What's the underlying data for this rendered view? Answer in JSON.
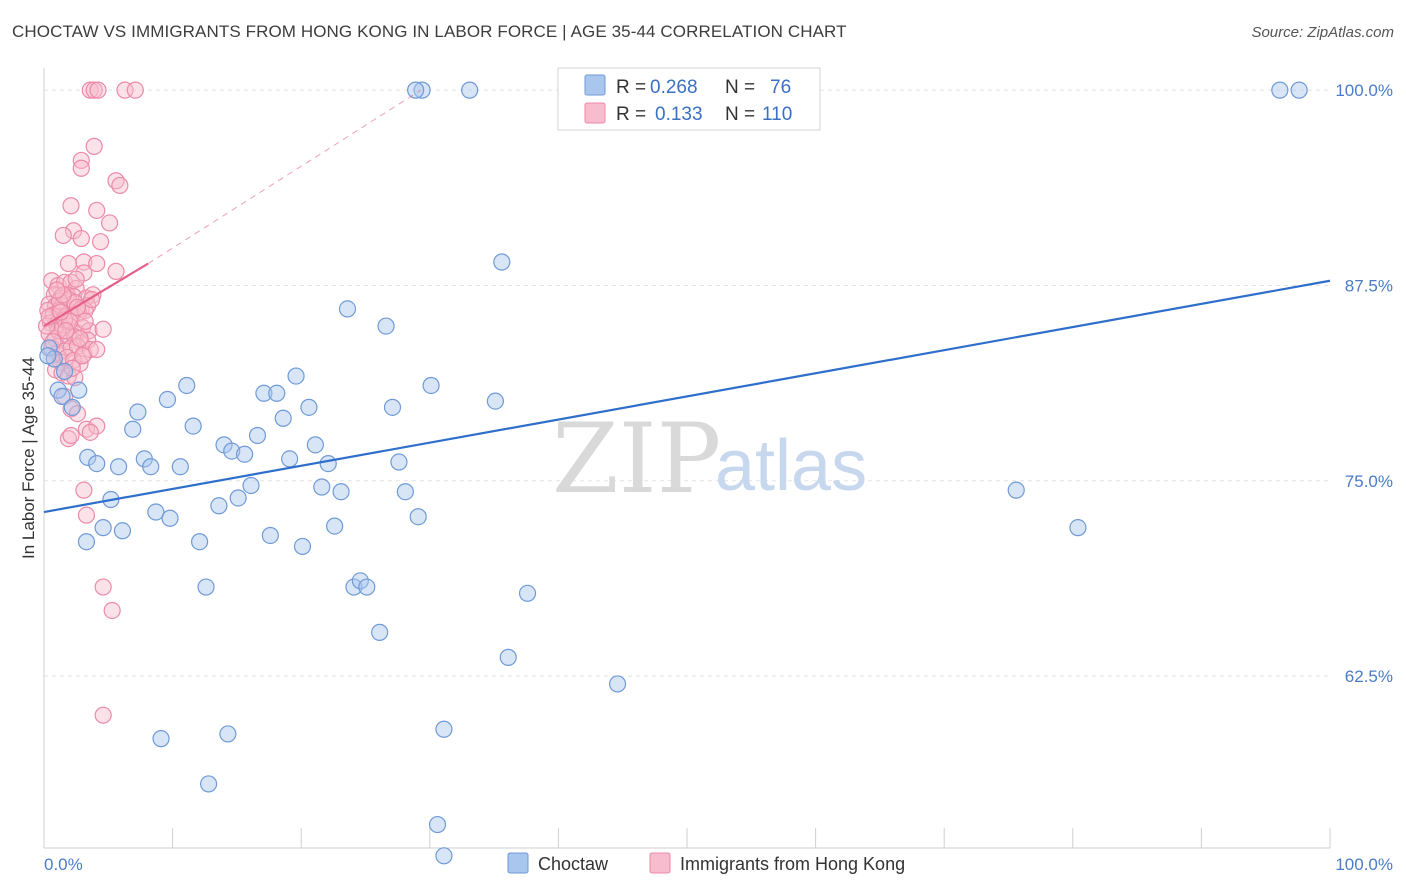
{
  "title": "CHOCTAW VS IMMIGRANTS FROM HONG KONG IN LABOR FORCE | AGE 35-44 CORRELATION CHART",
  "source": "Source: ZipAtlas.com",
  "watermark": {
    "zip": "ZIP",
    "atlas": "atlas"
  },
  "colors": {
    "choctaw_fill": "#a9c6ee",
    "choctaw_stroke": "#6f9ad6",
    "choctaw_line": "#2f6fcb",
    "hk_fill": "#f7bccd",
    "hk_stroke": "#ec8aa9",
    "hk_line": "#e4608a",
    "grid": "#e3e3e3",
    "label": "#4a7cc7"
  },
  "legend": {
    "rows": [
      {
        "r_label": "R =",
        "r_value": "0.268",
        "n_label": "N =",
        "n_value": "76"
      },
      {
        "r_label": "R =",
        "r_value": "0.133",
        "n_label": "N =",
        "n_value": "110"
      }
    ]
  },
  "chart_data": {
    "type": "scatter",
    "title": "CHOCTAW VS IMMIGRANTS FROM HONG KONG IN LABOR FORCE | AGE 35-44 CORRELATION CHART",
    "xlabel": "",
    "ylabel": "In Labor Force | Age 35-44",
    "xlim": [
      0,
      100
    ],
    "ylim": [
      51.5,
      101.8
    ],
    "x_tick_labels": [
      "0.0%",
      "100.0%"
    ],
    "y_ticks": [
      62.5,
      75.0,
      87.5,
      100.0
    ],
    "y_tick_labels": [
      "62.5%",
      "75.0%",
      "87.5%",
      "100.0%"
    ],
    "grid": true,
    "series": [
      {
        "name": "Choctaw",
        "R": 0.268,
        "N": 76,
        "trend": {
          "x": [
            0,
            100
          ],
          "y": [
            73.0,
            87.8
          ],
          "dashed_extension": false
        },
        "points": [
          [
            0.4,
            83.5
          ],
          [
            0.8,
            82.8
          ],
          [
            1.1,
            80.8
          ],
          [
            1.4,
            80.4
          ],
          [
            1.6,
            82.0
          ],
          [
            2.2,
            79.7
          ],
          [
            2.7,
            80.8
          ],
          [
            3.4,
            76.5
          ],
          [
            4.1,
            76.1
          ],
          [
            4.6,
            72.0
          ],
          [
            5.2,
            73.8
          ],
          [
            3.3,
            71.1
          ],
          [
            6.1,
            71.8
          ],
          [
            5.8,
            75.9
          ],
          [
            6.9,
            78.3
          ],
          [
            7.3,
            79.4
          ],
          [
            7.8,
            76.4
          ],
          [
            8.3,
            75.9
          ],
          [
            8.7,
            73.0
          ],
          [
            9.8,
            72.6
          ],
          [
            9.6,
            80.2
          ],
          [
            10.6,
            75.9
          ],
          [
            11.1,
            81.1
          ],
          [
            11.6,
            78.5
          ],
          [
            12.1,
            71.1
          ],
          [
            12.6,
            68.2
          ],
          [
            13.6,
            73.4
          ],
          [
            14.0,
            77.3
          ],
          [
            14.6,
            76.9
          ],
          [
            15.1,
            73.9
          ],
          [
            15.6,
            76.7
          ],
          [
            16.1,
            74.7
          ],
          [
            16.6,
            77.9
          ],
          [
            17.1,
            80.6
          ],
          [
            17.6,
            71.5
          ],
          [
            18.1,
            80.6
          ],
          [
            18.6,
            79.0
          ],
          [
            19.1,
            76.4
          ],
          [
            19.6,
            81.7
          ],
          [
            20.1,
            70.8
          ],
          [
            20.6,
            79.7
          ],
          [
            21.1,
            77.3
          ],
          [
            21.6,
            74.6
          ],
          [
            22.1,
            76.1
          ],
          [
            22.6,
            72.1
          ],
          [
            23.1,
            74.3
          ],
          [
            23.6,
            86.0
          ],
          [
            24.1,
            68.2
          ],
          [
            24.6,
            68.6
          ],
          [
            25.1,
            68.2
          ],
          [
            26.1,
            65.3
          ],
          [
            26.6,
            84.9
          ],
          [
            27.1,
            79.7
          ],
          [
            27.6,
            76.2
          ],
          [
            28.1,
            74.3
          ],
          [
            29.1,
            72.7
          ],
          [
            30.1,
            81.1
          ],
          [
            29.4,
            100.0
          ],
          [
            28.9,
            100.0
          ],
          [
            33.1,
            100.0
          ],
          [
            35.1,
            80.1
          ],
          [
            35.6,
            89.0
          ],
          [
            36.1,
            63.7
          ],
          [
            37.6,
            67.8
          ],
          [
            44.6,
            62.0
          ],
          [
            31.1,
            59.1
          ],
          [
            30.6,
            53.0
          ],
          [
            31.1,
            51.0
          ],
          [
            12.8,
            55.6
          ],
          [
            14.3,
            58.8
          ],
          [
            9.1,
            58.5
          ],
          [
            75.6,
            74.4
          ],
          [
            80.4,
            72.0
          ],
          [
            96.1,
            100.0
          ],
          [
            97.6,
            100.0
          ],
          [
            0.3,
            83.0
          ]
        ]
      },
      {
        "name": "Immigrants from Hong Kong",
        "R": 0.133,
        "N": 110,
        "trend": {
          "x": [
            0,
            8.1
          ],
          "y": [
            84.9,
            88.9
          ],
          "dashed_extension_to": [
            29.3,
            100.0
          ]
        },
        "points": [
          [
            3.6,
            100.0
          ],
          [
            3.9,
            100.0
          ],
          [
            4.2,
            100.0
          ],
          [
            6.3,
            100.0
          ],
          [
            7.1,
            100.0
          ],
          [
            3.9,
            96.4
          ],
          [
            2.9,
            95.5
          ],
          [
            2.9,
            95.0
          ],
          [
            5.6,
            94.2
          ],
          [
            5.9,
            93.9
          ],
          [
            4.1,
            92.3
          ],
          [
            2.1,
            92.6
          ],
          [
            5.1,
            91.5
          ],
          [
            2.3,
            91.0
          ],
          [
            1.5,
            90.7
          ],
          [
            2.9,
            90.5
          ],
          [
            4.4,
            90.3
          ],
          [
            3.1,
            89.0
          ],
          [
            1.9,
            88.9
          ],
          [
            3.1,
            88.3
          ],
          [
            4.1,
            88.9
          ],
          [
            5.6,
            88.4
          ],
          [
            0.6,
            87.8
          ],
          [
            1.1,
            87.5
          ],
          [
            1.6,
            87.7
          ],
          [
            2.1,
            87.7
          ],
          [
            2.5,
            87.3
          ],
          [
            0.8,
            86.9
          ],
          [
            1.3,
            86.7
          ],
          [
            1.8,
            86.9
          ],
          [
            2.3,
            86.8
          ],
          [
            3.3,
            86.7
          ],
          [
            3.8,
            86.9
          ],
          [
            0.4,
            86.3
          ],
          [
            0.9,
            86.2
          ],
          [
            1.4,
            86.2
          ],
          [
            1.9,
            86.6
          ],
          [
            2.4,
            86.4
          ],
          [
            2.9,
            86.0
          ],
          [
            3.4,
            86.2
          ],
          [
            0.3,
            85.9
          ],
          [
            0.7,
            85.6
          ],
          [
            1.2,
            85.9
          ],
          [
            1.7,
            85.5
          ],
          [
            2.2,
            85.6
          ],
          [
            2.7,
            85.7
          ],
          [
            3.2,
            85.9
          ],
          [
            0.5,
            85.1
          ],
          [
            1.0,
            85.0
          ],
          [
            1.5,
            84.8
          ],
          [
            2.0,
            84.9
          ],
          [
            2.5,
            84.5
          ],
          [
            3.0,
            84.8
          ],
          [
            3.5,
            84.6
          ],
          [
            4.6,
            84.7
          ],
          [
            0.4,
            84.4
          ],
          [
            0.9,
            84.1
          ],
          [
            1.4,
            84.0
          ],
          [
            1.9,
            84.3
          ],
          [
            2.4,
            84.2
          ],
          [
            2.9,
            83.8
          ],
          [
            3.4,
            84.0
          ],
          [
            0.6,
            83.5
          ],
          [
            1.1,
            83.2
          ],
          [
            1.6,
            83.3
          ],
          [
            2.1,
            83.5
          ],
          [
            2.6,
            83.6
          ],
          [
            3.1,
            83.1
          ],
          [
            3.6,
            83.4
          ],
          [
            4.1,
            83.4
          ],
          [
            0.8,
            82.8
          ],
          [
            1.3,
            82.6
          ],
          [
            1.8,
            82.9
          ],
          [
            2.3,
            82.7
          ],
          [
            2.8,
            82.5
          ],
          [
            0.9,
            82.1
          ],
          [
            1.4,
            81.9
          ],
          [
            1.9,
            81.7
          ],
          [
            2.4,
            81.6
          ],
          [
            1.6,
            80.4
          ],
          [
            2.1,
            79.6
          ],
          [
            2.6,
            79.3
          ],
          [
            3.3,
            78.3
          ],
          [
            4.1,
            78.5
          ],
          [
            3.6,
            78.1
          ],
          [
            1.9,
            77.7
          ],
          [
            2.1,
            77.9
          ],
          [
            3.1,
            74.4
          ],
          [
            3.3,
            72.8
          ],
          [
            4.6,
            68.2
          ],
          [
            5.3,
            66.7
          ],
          [
            4.6,
            60.0
          ],
          [
            1.1,
            84.6
          ],
          [
            1.6,
            85.3
          ],
          [
            2.6,
            86.1
          ],
          [
            0.2,
            84.9
          ],
          [
            1.2,
            86.5
          ],
          [
            2.0,
            85.2
          ],
          [
            3.7,
            86.6
          ],
          [
            0.7,
            83.9
          ],
          [
            1.7,
            84.6
          ],
          [
            2.2,
            82.2
          ],
          [
            3.2,
            85.2
          ],
          [
            1.5,
            86.9
          ],
          [
            0.4,
            85.5
          ],
          [
            2.5,
            87.9
          ],
          [
            1.0,
            87.2
          ],
          [
            3.0,
            83.0
          ],
          [
            2.8,
            84.1
          ],
          [
            1.3,
            85.8
          ]
        ]
      }
    ]
  },
  "bottom_legend": [
    "Choctaw",
    "Immigrants from Hong Kong"
  ]
}
